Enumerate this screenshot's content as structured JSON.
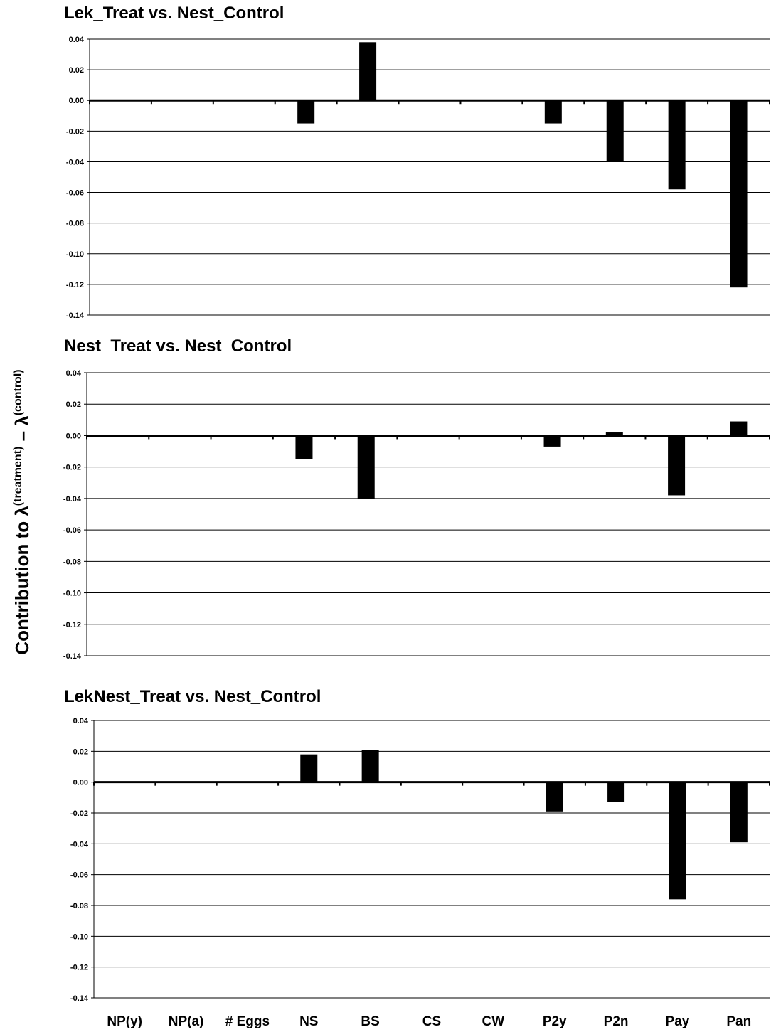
{
  "y_axis_label": {
    "prefix": "Contribution to λ",
    "sup1": "(treatment)",
    "mid": " – λ",
    "sup2": "(control)"
  },
  "categories": [
    "NP(y)",
    "NP(a)",
    "# Eggs",
    "NS",
    "BS",
    "CS",
    "CW",
    "P2y",
    "P2n",
    "Pay",
    "Pan"
  ],
  "chart_data": [
    {
      "type": "bar",
      "title": "Lek_Treat vs. Nest_Control",
      "categories": [
        "NP(y)",
        "NP(a)",
        "# Eggs",
        "NS",
        "BS",
        "CS",
        "CW",
        "P2y",
        "P2n",
        "Pay",
        "Pan"
      ],
      "values": [
        0,
        0,
        0,
        -0.015,
        0.038,
        0,
        0,
        -0.015,
        -0.04,
        -0.058,
        -0.122
      ],
      "ylim": [
        -0.14,
        0.04
      ],
      "yticks": [
        "0.04",
        "0.02",
        "0.00",
        "-0.02",
        "-0.04",
        "-0.06",
        "-0.08",
        "-0.10",
        "-0.12",
        "-0.14"
      ],
      "grid": true,
      "color": "#000000"
    },
    {
      "type": "bar",
      "title": "Nest_Treat vs. Nest_Control",
      "categories": [
        "NP(y)",
        "NP(a)",
        "# Eggs",
        "NS",
        "BS",
        "CS",
        "CW",
        "P2y",
        "P2n",
        "Pay",
        "Pan"
      ],
      "values": [
        0,
        0,
        0,
        -0.015,
        -0.04,
        0,
        0,
        -0.007,
        0.002,
        -0.038,
        0.009
      ],
      "ylim": [
        -0.14,
        0.04
      ],
      "yticks": [
        "0.04",
        "0.02",
        "0.00",
        "-0.02",
        "-0.04",
        "-0.06",
        "-0.08",
        "-0.10",
        "-0.12",
        "-0.14"
      ],
      "grid": true,
      "color": "#000000"
    },
    {
      "type": "bar",
      "title": "LekNest_Treat vs. Nest_Control",
      "categories": [
        "NP(y)",
        "NP(a)",
        "# Eggs",
        "NS",
        "BS",
        "CS",
        "CW",
        "P2y",
        "P2n",
        "Pay",
        "Pan"
      ],
      "values": [
        0,
        0,
        0,
        0.018,
        0.021,
        0,
        0,
        -0.019,
        -0.013,
        -0.076,
        -0.039
      ],
      "ylim": [
        -0.14,
        0.04
      ],
      "yticks": [
        "0.04",
        "0.02",
        "0.00",
        "-0.02",
        "-0.04",
        "-0.06",
        "-0.08",
        "-0.10",
        "-0.12",
        "-0.14"
      ],
      "grid": true,
      "color": "#000000"
    }
  ]
}
